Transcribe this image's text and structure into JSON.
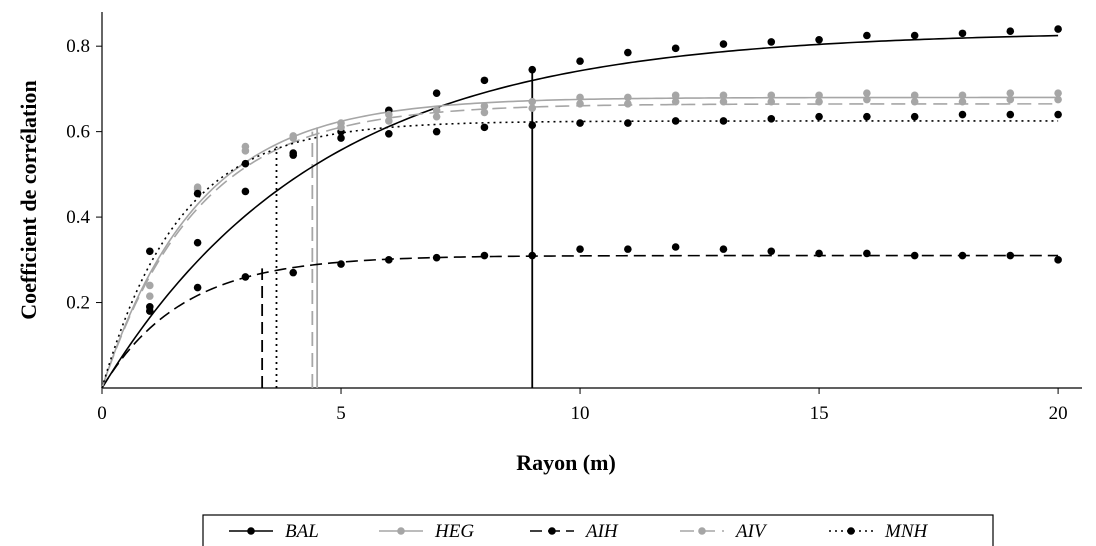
{
  "chart_data": {
    "type": "line",
    "xlabel": "Rayon (m)",
    "ylabel": "Coefficient de corrélation",
    "xlim": [
      0,
      20.5
    ],
    "ylim": [
      0,
      0.88
    ],
    "xticks": [
      0,
      5,
      10,
      15,
      20
    ],
    "xtick_labels": [
      "0",
      "5",
      "10",
      "15",
      "20"
    ],
    "yticks": [
      0.2,
      0.4,
      0.6,
      0.8
    ],
    "ytick_labels": [
      "0.2",
      "0.4",
      "0.6",
      "0.8"
    ],
    "grid": false,
    "legend_position": "bottom",
    "x": [
      1,
      2,
      3,
      4,
      5,
      6,
      7,
      8,
      9,
      10,
      11,
      12,
      13,
      14,
      15,
      16,
      17,
      18,
      19,
      20
    ],
    "series": [
      {
        "name": "BAL",
        "color": "#000000",
        "dash": "solid",
        "points": [
          0.19,
          0.34,
          0.46,
          0.55,
          0.6,
          0.65,
          0.69,
          0.72,
          0.745,
          0.765,
          0.785,
          0.795,
          0.805,
          0.81,
          0.815,
          0.825,
          0.825,
          0.83,
          0.835,
          0.84
        ],
        "fit_asymptote": 0.835,
        "fit_rate": 0.22,
        "threshold_x": 9.0,
        "threshold_y": 0.745
      },
      {
        "name": "HEG",
        "color": "#a6a6a6",
        "dash": "solid",
        "points": [
          0.24,
          0.47,
          0.565,
          0.59,
          0.62,
          0.64,
          0.65,
          0.66,
          0.67,
          0.68,
          0.68,
          0.685,
          0.685,
          0.685,
          0.685,
          0.69,
          0.685,
          0.685,
          0.69,
          0.69
        ],
        "fit_asymptote": 0.68,
        "fit_rate": 0.5,
        "threshold_x": 4.5,
        "threshold_y": 0.61
      },
      {
        "name": "AIH",
        "color": "#000000",
        "dash": "longdash",
        "points": [
          0.18,
          0.235,
          0.26,
          0.27,
          0.29,
          0.3,
          0.305,
          0.31,
          0.31,
          0.325,
          0.325,
          0.33,
          0.325,
          0.32,
          0.315,
          0.315,
          0.31,
          0.31,
          0.31,
          0.3
        ],
        "fit_asymptote": 0.31,
        "fit_rate": 0.6,
        "threshold_x": 3.35,
        "threshold_y": 0.28
      },
      {
        "name": "AIV",
        "color": "#a6a6a6",
        "dash": "dash",
        "points": [
          0.215,
          0.465,
          0.555,
          0.585,
          0.61,
          0.625,
          0.635,
          0.645,
          0.655,
          0.665,
          0.665,
          0.67,
          0.67,
          0.67,
          0.67,
          0.675,
          0.67,
          0.67,
          0.675,
          0.675
        ],
        "fit_asymptote": 0.665,
        "fit_rate": 0.5,
        "threshold_x": 4.4,
        "threshold_y": 0.6
      },
      {
        "name": "MNH",
        "color": "#000000",
        "dash": "dot",
        "points": [
          0.32,
          0.455,
          0.525,
          0.545,
          0.585,
          0.595,
          0.6,
          0.61,
          0.615,
          0.62,
          0.62,
          0.625,
          0.625,
          0.63,
          0.635,
          0.635,
          0.635,
          0.64,
          0.64,
          0.64
        ],
        "fit_asymptote": 0.625,
        "fit_rate": 0.62,
        "threshold_x": 3.65,
        "threshold_y": 0.565
      }
    ]
  }
}
